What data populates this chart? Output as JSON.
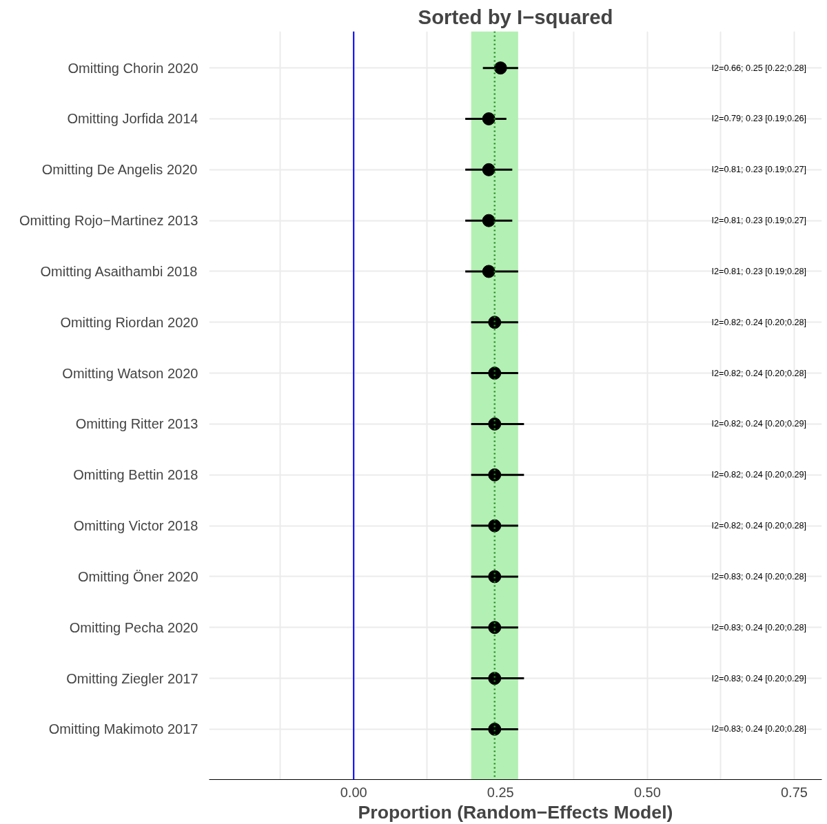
{
  "chart_data": {
    "type": "scatter",
    "title": "Sorted by I−squared",
    "xlabel": "Proportion (Random−Effects Model)",
    "orientation": "horizontal",
    "categories": [
      "Omitting Chorin 2020",
      "Omitting Jorfida 2014",
      "Omitting De Angelis 2020",
      "Omitting Rojo−Martinez 2013",
      "Omitting Asaithambi 2018",
      "Omitting Riordan 2020",
      "Omitting Watson 2020",
      "Omitting Ritter 2013",
      "Omitting Bettin 2018",
      "Omitting Victor 2018",
      "Omitting Öner 2020",
      "Omitting Pecha 2020",
      "Omitting Ziegler 2017",
      "Omitting Makimoto 2017"
    ],
    "values": [
      0.25,
      0.23,
      0.23,
      0.23,
      0.23,
      0.24,
      0.24,
      0.24,
      0.24,
      0.24,
      0.24,
      0.24,
      0.24,
      0.24
    ],
    "errors": [
      [
        0.22,
        0.28
      ],
      [
        0.19,
        0.26
      ],
      [
        0.19,
        0.27
      ],
      [
        0.19,
        0.27
      ],
      [
        0.19,
        0.28
      ],
      [
        0.2,
        0.28
      ],
      [
        0.2,
        0.28
      ],
      [
        0.2,
        0.29
      ],
      [
        0.2,
        0.29
      ],
      [
        0.2,
        0.28
      ],
      [
        0.2,
        0.28
      ],
      [
        0.2,
        0.28
      ],
      [
        0.2,
        0.29
      ],
      [
        0.2,
        0.28
      ]
    ],
    "annotations": [
      "I2=0.66; 0.25 [0.22;0.28]",
      "I2=0.79; 0.23 [0.19;0.26]",
      "I2=0.81; 0.23 [0.19;0.27]",
      "I2=0.81; 0.23 [0.19;0.27]",
      "I2=0.81; 0.23 [0.19;0.28]",
      "I2=0.82; 0.24 [0.20;0.28]",
      "I2=0.82; 0.24 [0.20;0.28]",
      "I2=0.82; 0.24 [0.20;0.29]",
      "I2=0.82; 0.24 [0.20;0.29]",
      "I2=0.82; 0.24 [0.20;0.28]",
      "I2=0.83; 0.24 [0.20;0.28]",
      "I2=0.83; 0.24 [0.20;0.28]",
      "I2=0.83; 0.24 [0.20;0.29]",
      "I2=0.83; 0.24 [0.20;0.28]"
    ],
    "color": "#000000",
    "marker": "circle",
    "xlim": [
      -0.246,
      0.797
    ],
    "xticks": [
      {
        "value": -0.125,
        "label": null
      },
      {
        "value": 0,
        "label": "0.00"
      },
      {
        "value": 0.125,
        "label": null
      },
      {
        "value": 0.25,
        "label": "0.25"
      },
      {
        "value": 0.375,
        "label": null
      },
      {
        "value": 0.5,
        "label": "0.50"
      },
      {
        "value": 0.625,
        "label": null
      },
      {
        "value": 0.75,
        "label": "0.75"
      }
    ],
    "grid": true,
    "ref_lines": [
      {
        "axis": "x",
        "value": 0,
        "label": null,
        "color": "#0000ff",
        "line_style": "solid"
      },
      {
        "axis": "x",
        "value": 0.24,
        "label": null,
        "color": "#228b22",
        "line_style": "dotted"
      }
    ],
    "bands": [
      {
        "axis": "x",
        "from": 0.2,
        "to": 0.28,
        "label": null,
        "color": "#b3f0b3"
      }
    ]
  }
}
